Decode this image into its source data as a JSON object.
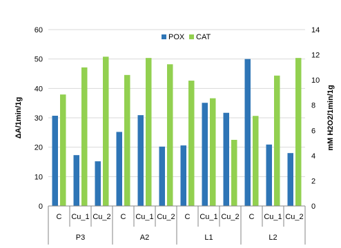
{
  "chart_data": {
    "type": "bar",
    "title": "",
    "ylabel_left": "ΔA/1min/1g",
    "ylabel_right": "mM H2O2/1min/1g",
    "ylim_left": [
      0,
      60
    ],
    "yticks_left": [
      "0",
      "10",
      "20",
      "30",
      "40",
      "50",
      "60"
    ],
    "ylim_right": [
      0,
      14
    ],
    "yticks_right": [
      "0",
      "2",
      "4",
      "6",
      "8",
      "10",
      "12",
      "14"
    ],
    "groups": [
      "P3",
      "A2",
      "L1",
      "L2"
    ],
    "categories": [
      "C",
      "Cu_1",
      "Cu_2",
      "C",
      "Cu_1",
      "Cu_2",
      "C",
      "Cu_1",
      "Cu_2",
      "C",
      "Cu_1",
      "Cu_2"
    ],
    "legend_position": "top",
    "grid": true,
    "series": [
      {
        "name": "POX",
        "axis": "left",
        "color": "#2e75b6",
        "values": [
          30.7,
          17.3,
          15.2,
          25.2,
          30.9,
          20.2,
          20.6,
          35.1,
          31.7,
          50.0,
          20.9,
          18.0
        ]
      },
      {
        "name": "CAT",
        "axis": "right",
        "color": "#92d050",
        "values": [
          8.85,
          11.0,
          11.85,
          10.4,
          11.75,
          11.25,
          9.95,
          8.55,
          5.25,
          7.15,
          10.35,
          11.75
        ]
      }
    ]
  }
}
